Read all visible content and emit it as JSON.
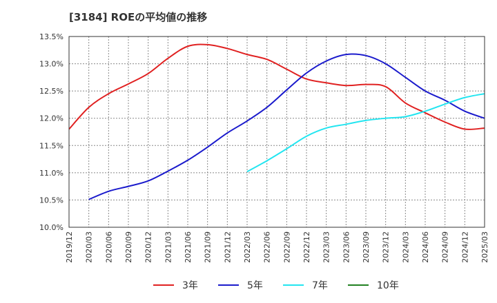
{
  "chart_data": {
    "type": "line",
    "title": "[3184]  ROEの平均値の推移",
    "xlabel": "",
    "ylabel": "",
    "ylim": [
      10.0,
      13.5
    ],
    "grid": true,
    "legend_position": "bottom",
    "y_ticks": [
      "10.0%",
      "10.5%",
      "11.0%",
      "11.5%",
      "12.0%",
      "12.5%",
      "13.0%",
      "13.5%"
    ],
    "x_ticks": [
      "2019/12",
      "2020/03",
      "2020/06",
      "2020/09",
      "2020/12",
      "2021/03",
      "2021/06",
      "2021/09",
      "2021/12",
      "2022/03",
      "2022/06",
      "2022/09",
      "2022/12",
      "2023/03",
      "2023/06",
      "2023/09",
      "2023/12",
      "2024/03",
      "2024/06",
      "2024/09",
      "2024/12",
      "2025/03"
    ],
    "series": [
      {
        "name": "3年",
        "color": "#e02020",
        "points": [
          [
            0,
            11.8
          ],
          [
            1,
            12.2
          ],
          [
            2,
            12.45
          ],
          [
            3,
            12.63
          ],
          [
            4,
            12.82
          ],
          [
            5,
            13.1
          ],
          [
            6,
            13.32
          ],
          [
            7,
            13.35
          ],
          [
            8,
            13.28
          ],
          [
            9,
            13.17
          ],
          [
            10,
            13.08
          ],
          [
            11,
            12.9
          ],
          [
            12,
            12.72
          ],
          [
            13,
            12.65
          ],
          [
            14,
            12.6
          ],
          [
            15,
            12.62
          ],
          [
            16,
            12.58
          ],
          [
            17,
            12.28
          ],
          [
            18,
            12.1
          ],
          [
            19,
            11.93
          ],
          [
            20,
            11.8
          ],
          [
            21,
            11.82
          ]
        ]
      },
      {
        "name": "5年",
        "color": "#1a1acc",
        "points": [
          [
            1,
            10.51
          ],
          [
            2,
            10.66
          ],
          [
            3,
            10.75
          ],
          [
            4,
            10.85
          ],
          [
            5,
            11.03
          ],
          [
            6,
            11.23
          ],
          [
            7,
            11.47
          ],
          [
            8,
            11.73
          ],
          [
            9,
            11.95
          ],
          [
            10,
            12.2
          ],
          [
            11,
            12.52
          ],
          [
            12,
            12.83
          ],
          [
            13,
            13.05
          ],
          [
            14,
            13.17
          ],
          [
            15,
            13.15
          ],
          [
            16,
            13.0
          ],
          [
            17,
            12.75
          ],
          [
            18,
            12.5
          ],
          [
            19,
            12.33
          ],
          [
            20,
            12.13
          ],
          [
            21,
            12.0
          ]
        ]
      },
      {
        "name": "7年",
        "color": "#22e5f0",
        "points": [
          [
            9,
            11.02
          ],
          [
            10,
            11.22
          ],
          [
            11,
            11.44
          ],
          [
            12,
            11.67
          ],
          [
            13,
            11.82
          ],
          [
            14,
            11.89
          ],
          [
            15,
            11.96
          ],
          [
            16,
            12.0
          ],
          [
            17,
            12.03
          ],
          [
            18,
            12.13
          ],
          [
            19,
            12.26
          ],
          [
            20,
            12.38
          ],
          [
            21,
            12.45
          ]
        ]
      },
      {
        "name": "10年",
        "color": "#208020",
        "points": []
      }
    ]
  }
}
